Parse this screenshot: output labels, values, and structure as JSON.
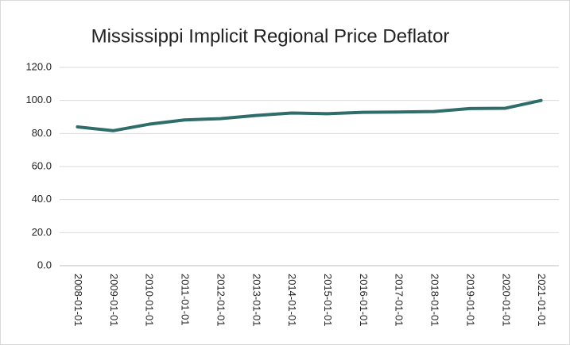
{
  "chart_data": {
    "type": "line",
    "title": "Mississippi Implicit Regional Price Deflator",
    "categories": [
      "2008-01-01",
      "2009-01-01",
      "2010-01-01",
      "2011-01-01",
      "2012-01-01",
      "2013-01-01",
      "2014-01-01",
      "2015-01-01",
      "2016-01-01",
      "2017-01-01",
      "2018-01-01",
      "2019-01-01",
      "2020-01-01",
      "2021-01-01"
    ],
    "values": [
      84.0,
      81.7,
      85.6,
      88.2,
      89.0,
      90.9,
      92.4,
      92.0,
      92.8,
      93.0,
      93.3,
      95.1,
      95.3,
      100.0
    ],
    "color": "#2f6d6a",
    "ylim": [
      0,
      120
    ],
    "yticks": [
      {
        "value": 0,
        "label": "0.0"
      },
      {
        "value": 20,
        "label": "20.0"
      },
      {
        "value": 40,
        "label": "40.0"
      },
      {
        "value": 60,
        "label": "60.0"
      },
      {
        "value": 80,
        "label": "80.0"
      },
      {
        "value": 100,
        "label": "100.0"
      },
      {
        "value": 120,
        "label": "120.0"
      }
    ],
    "grid": true
  }
}
